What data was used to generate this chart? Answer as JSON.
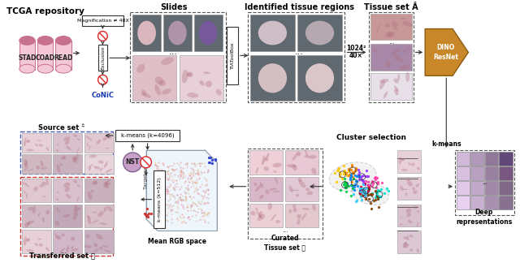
{
  "background_color": "#ffffff",
  "fig_width": 6.4,
  "fig_height": 3.24,
  "colors": {
    "pink_light": "#f5c8d8",
    "pink_medium": "#e8a0b8",
    "pink_dark": "#c87090",
    "pink_db_top": "#d89090",
    "purple_light": "#c8a0c8",
    "purple_dark": "#806090",
    "blue_text": "#1a3ab0",
    "gray_tile": "#888888",
    "gray_dark_tile": "#606060",
    "arrow_color": "#333333",
    "no_symbol": "#dd2222",
    "dash_box": "#666666",
    "gold": "#c8882a",
    "gold_edge": "#8a5a10",
    "blue_dashed": "#4455bb",
    "red_dashed": "#cc3333",
    "kmeans_box": "#ffffff",
    "tia_box": "#ffffff",
    "excl_box": "#ffffff"
  },
  "labels": {
    "tcga": "TCGA repository",
    "slides": "Slides",
    "tissue_regions": "Identified tissue regions",
    "tissue_set_A": "Tissue set Â",
    "dino": "DINO\nResNet",
    "magnif": "Magnification ≠ 40X",
    "exclusion": "Exclusion",
    "conic": "CoNiC",
    "tiatoolbox": "TIAToolBox",
    "resolution1": "1024²",
    "resolution2": "40×",
    "source": "Source set ᵔ̂",
    "kmeans4096": "k-means (k=4096)",
    "nst": "NST",
    "target": "Target set 𝑯",
    "kmeans512": "k-means (k=512)",
    "transferred": "Transferred set 𝑰",
    "rgb": "Mean RGB space",
    "curated": "Curated\nTissue set 𝑱",
    "cluster": "Cluster selection",
    "deep": "Deep\nrepresentations",
    "kmeans": "k-means",
    "dots": "..."
  },
  "slide_tile_colors_top": [
    "#e8c8cc",
    "#c8a8b8",
    "#9878a0"
  ],
  "slide_tile_colors_bot": [
    "#d8b8c0",
    "#dcc8d0"
  ],
  "tissue_region_colors_top": [
    "#c8b8bc",
    "#c0b0b8"
  ],
  "tissue_region_colors_bot": [
    "#c8b8bc",
    "#dcc8cc"
  ],
  "tissue_A_colors": [
    "#c89898",
    "#a888a8",
    "#e8e0e8"
  ],
  "swatch_rows": [
    [
      "#d0b8d8",
      "#b098b8",
      "#907898",
      "#604878"
    ],
    [
      "#d8c0e0",
      "#b8a0c0",
      "#9880a0",
      "#785880"
    ],
    [
      "#e0c8e8",
      "#c0a8c8",
      "#a088a8",
      "#806888"
    ],
    [
      "#e8d0f0",
      "#c8b0d0",
      "#a890b0",
      "#887090"
    ]
  ]
}
